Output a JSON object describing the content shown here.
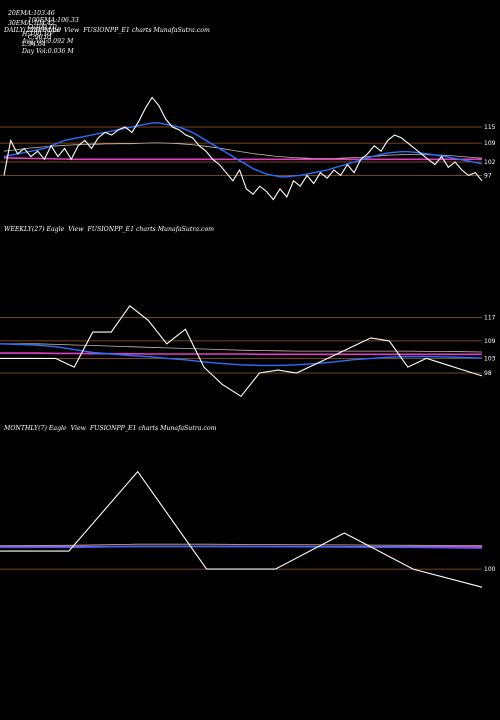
{
  "header": {
    "row1": [
      {
        "label": "20EMA:",
        "value": "103.46"
      },
      {
        "label": "100EMA:",
        "value": "106.33"
      },
      {
        "label": "O:",
        "value": "100.10"
      },
      {
        "label": "H:",
        "value": "100.10"
      },
      {
        "label": "Avg Vol:",
        "value": "0.092 M"
      }
    ],
    "row2": [
      {
        "label": "30EMA:",
        "value": "104.42"
      },
      {
        "label": "200EMA:",
        "value": "0"
      },
      {
        "label": "C:",
        "value": "96.01"
      },
      {
        "label": "L:",
        "value": "94.64"
      },
      {
        "label": "Day Vol:",
        "value": "0.036 M"
      }
    ]
  },
  "colors": {
    "background": "#000000",
    "price": "#ffffff",
    "ema_fast": "#2b6fff",
    "ema_slow": "#c8b9a8",
    "pink": "#e040c0",
    "level": "#a05a28"
  },
  "chart_data": [
    {
      "type": "line",
      "title": "DAILY(126) Eagle  View  FUSIONPP_E1 charts MunafaSutra.com",
      "levels": [
        115,
        109,
        102,
        97
      ],
      "price": [
        97,
        110,
        105,
        107,
        104,
        106,
        103,
        108,
        104,
        107,
        103,
        108,
        110,
        107,
        111,
        113,
        112,
        114,
        115,
        113,
        117,
        122,
        126,
        123,
        118,
        115,
        114,
        112,
        111,
        108,
        106,
        103,
        101,
        98,
        95,
        99,
        92,
        90,
        93,
        91,
        88,
        92,
        89,
        95,
        93,
        97,
        94,
        98,
        96,
        99,
        97,
        101,
        98,
        103,
        105,
        108,
        106,
        110,
        112,
        111,
        109,
        107,
        105,
        103,
        101,
        104,
        100,
        102,
        99,
        97,
        98,
        95
      ],
      "ema_fast": [
        104,
        104.5,
        105,
        105.5,
        106,
        106.5,
        107,
        108,
        109,
        110,
        110.5,
        111,
        111.5,
        112,
        112.5,
        113,
        113.5,
        114,
        114.5,
        115,
        115.5,
        116,
        116.5,
        116.5,
        116,
        115.5,
        115,
        114,
        113,
        111.5,
        110,
        108.5,
        107,
        105.5,
        104,
        102.5,
        101,
        99.5,
        98.5,
        97.5,
        97,
        96.5,
        96.5,
        96.8,
        97,
        97.5,
        98,
        98.5,
        99,
        99.8,
        100.5,
        101.2,
        102,
        102.8,
        103.5,
        104.2,
        104.8,
        105.3,
        105.6,
        105.8,
        105.8,
        105.6,
        105.3,
        105,
        104.6,
        104.2,
        103.8,
        103.3,
        102.8,
        102.3,
        101.8,
        101.3
      ],
      "ema_slow": [
        106,
        106.3,
        106.6,
        106.9,
        107.2,
        107.4,
        107.6,
        107.8,
        108,
        108.2,
        108.3,
        108.4,
        108.5,
        108.6,
        108.6,
        108.7,
        108.7,
        108.8,
        108.8,
        108.8,
        108.9,
        109,
        109.1,
        109.1,
        109,
        108.9,
        108.8,
        108.6,
        108.4,
        108.1,
        107.8,
        107.5,
        107.1,
        106.7,
        106.3,
        105.9,
        105.5,
        105.1,
        104.8,
        104.5,
        104.2,
        104,
        103.8,
        103.6,
        103.5,
        103.4,
        103.3,
        103.3,
        103.3,
        103.3,
        103.4,
        103.5,
        103.6,
        103.7,
        103.9,
        104.1,
        104.3,
        104.5,
        104.6,
        104.7,
        104.8,
        104.8,
        104.8,
        104.7,
        104.6,
        104.5,
        104.4,
        104.2,
        104,
        103.8,
        103.6,
        103.4
      ],
      "pink": [
        103.5,
        103.5,
        103.4,
        103.4,
        103.3,
        103.3,
        103.2,
        103.2,
        103.1,
        103.1,
        103,
        103,
        103,
        103,
        103,
        103,
        103,
        103,
        103,
        103,
        103,
        103,
        103,
        103,
        103,
        103,
        103,
        103,
        103,
        103,
        103,
        103,
        103,
        103,
        103,
        103,
        103,
        103,
        103,
        103,
        103,
        103,
        103,
        103,
        103,
        103,
        103,
        103,
        103,
        103,
        103,
        103,
        103,
        103,
        103,
        103,
        103,
        103,
        103,
        103,
        103,
        103,
        103,
        103,
        103,
        103,
        103,
        103,
        103,
        103,
        103,
        103
      ]
    },
    {
      "type": "line",
      "title": "WEEKLY(27) Eagle  View  FUSIONPP_E1 charts MunafaSutra.com",
      "levels": [
        117,
        109,
        103,
        98
      ],
      "price": [
        103,
        103,
        103,
        103,
        100,
        112,
        112,
        121,
        116,
        108,
        113,
        100,
        94,
        90,
        98,
        99,
        98,
        101,
        104,
        107,
        110,
        109,
        100,
        103,
        101,
        99,
        97
      ],
      "ema_fast": [
        108,
        107.8,
        107.5,
        107,
        106,
        105,
        104.5,
        104,
        103.6,
        103,
        102.5,
        101.8,
        101.2,
        100.8,
        100.6,
        100.6,
        100.8,
        101.2,
        101.8,
        102.5,
        103,
        103.4,
        103.6,
        103.6,
        103.5,
        103.3,
        103.1
      ],
      "ema_slow": [
        108,
        108,
        108,
        107.8,
        107.6,
        107.4,
        107.2,
        107,
        106.8,
        106.6,
        106.4,
        106.2,
        106,
        105.8,
        105.7,
        105.6,
        105.5,
        105.5,
        105.5,
        105.5,
        105.5,
        105.5,
        105.5,
        105.4,
        105.4,
        105.3,
        105.2
      ],
      "pink": [
        104.8,
        104.8,
        104.8,
        104.7,
        104.7,
        104.6,
        104.6,
        104.6,
        104.5,
        104.5,
        104.5,
        104.5,
        104.5,
        104.5,
        104.4,
        104.4,
        104.4,
        104.4,
        104.4,
        104.4,
        104.4,
        104.4,
        104.4,
        104.4,
        104.4,
        104.4,
        104.4
      ]
    },
    {
      "type": "line",
      "title": "MONTHLY(7) Eagle  View  FUSIONPP_E1 charts MunafaSutra.com",
      "levels": [
        100
      ],
      "price": [
        105,
        105,
        127,
        100,
        100,
        110,
        100,
        95
      ],
      "ema_fast": [
        106,
        106,
        106.3,
        106.3,
        106.2,
        106.1,
        106,
        105.8
      ],
      "ema_slow": [
        106.5,
        106.6,
        106.9,
        106.9,
        106.8,
        106.7,
        106.6,
        106.5
      ],
      "pink": [
        106.2,
        106.2,
        106.3,
        106.3,
        106.3,
        106.2,
        106.2,
        106.2
      ]
    }
  ]
}
